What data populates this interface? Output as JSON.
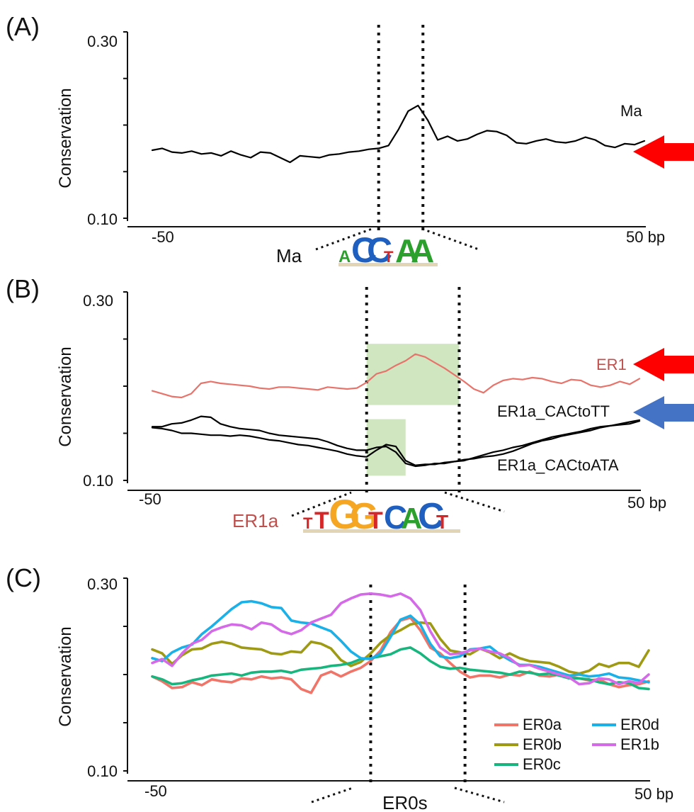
{
  "colors": {
    "axis": "#111111",
    "guide": "#111111",
    "red_arrow": "#ff0000",
    "blue_arrow": "#4472c4",
    "highlight": "#a9d18e",
    "ER1_red": "#e8736b",
    "ER1a_label": "#c0504d"
  },
  "chart_data": [
    {
      "panel": "(A)",
      "type": "line",
      "ylabel": "Conservation",
      "ytick_labels": [
        "0.30",
        "0.10"
      ],
      "ylim": [
        0.1,
        0.3
      ],
      "xlim": [
        -50,
        50
      ],
      "x_tick_labels": [
        "-50",
        "50 bp"
      ],
      "guides_x": [
        -4,
        5
      ],
      "motif": {
        "name": "Ma",
        "logo": "ACCTAA",
        "logo_colors": [
          "#2ca02c",
          "#1f5fbf",
          "#1f5fbf",
          "#d62728",
          "#2ca02c",
          "#2ca02c"
        ]
      },
      "arrows": [
        {
          "color": "red",
          "y": 0.17
        }
      ],
      "series": [
        {
          "name": "Ma",
          "color": "#000000",
          "x": [
            -50,
            -48,
            -46,
            -44,
            -42,
            -40,
            -38,
            -36,
            -34,
            -32,
            -30,
            -28,
            -26,
            -24,
            -22,
            -20,
            -18,
            -16,
            -14,
            -12,
            -10,
            -8,
            -6,
            -4,
            -2,
            0,
            2,
            4,
            6,
            8,
            10,
            12,
            14,
            16,
            18,
            20,
            22,
            24,
            26,
            28,
            30,
            32,
            34,
            36,
            38,
            40,
            42,
            44,
            46,
            48,
            50
          ],
          "y": [
            0.173,
            0.175,
            0.171,
            0.17,
            0.172,
            0.169,
            0.17,
            0.167,
            0.172,
            0.168,
            0.165,
            0.171,
            0.17,
            0.165,
            0.16,
            0.167,
            0.166,
            0.165,
            0.168,
            0.169,
            0.171,
            0.172,
            0.174,
            0.175,
            0.178,
            0.195,
            0.215,
            0.221,
            0.205,
            0.184,
            0.188,
            0.183,
            0.185,
            0.19,
            0.194,
            0.193,
            0.189,
            0.181,
            0.18,
            0.183,
            0.185,
            0.182,
            0.181,
            0.183,
            0.187,
            0.184,
            0.178,
            0.176,
            0.18,
            0.179,
            0.183
          ]
        }
      ]
    },
    {
      "panel": "(B)",
      "type": "line",
      "ylabel": "Conservation",
      "ytick_labels": [
        "0.30",
        "0.10"
      ],
      "ylim": [
        0.1,
        0.3
      ],
      "xlim": [
        -50,
        50
      ],
      "x_tick_labels": [
        "-50",
        "50 bp"
      ],
      "guides_x": [
        -6,
        13
      ],
      "highlights": [
        {
          "x": [
            -6,
            13
          ],
          "y": [
            0.18,
            0.245
          ]
        },
        {
          "x": [
            -6,
            2
          ],
          "y": [
            0.105,
            0.165
          ]
        }
      ],
      "motif": {
        "name": "ER1a",
        "logo": "TTGGTCACT",
        "logo_colors": [
          "#d62728",
          "#d62728",
          "#f5a623",
          "#f5a623",
          "#d62728",
          "#1f5fbf",
          "#2ca02c",
          "#1f5fbf",
          "#d62728"
        ]
      },
      "arrows": [
        {
          "color": "red",
          "y": 0.225
        },
        {
          "color": "blue",
          "y": 0.17
        }
      ],
      "series": [
        {
          "name": "ER1",
          "color": "#e8736b",
          "x": [
            -50,
            -48,
            -46,
            -44,
            -42,
            -40,
            -38,
            -36,
            -34,
            -32,
            -30,
            -28,
            -26,
            -24,
            -22,
            -20,
            -18,
            -16,
            -14,
            -12,
            -10,
            -8,
            -6,
            -4,
            -2,
            0,
            2,
            4,
            6,
            8,
            10,
            12,
            14,
            16,
            18,
            20,
            22,
            24,
            26,
            28,
            30,
            32,
            34,
            36,
            38,
            40,
            42,
            44,
            46,
            48,
            50
          ],
          "y": [
            0.195,
            0.192,
            0.189,
            0.188,
            0.192,
            0.203,
            0.205,
            0.203,
            0.202,
            0.201,
            0.2,
            0.198,
            0.197,
            0.199,
            0.199,
            0.198,
            0.197,
            0.196,
            0.199,
            0.198,
            0.197,
            0.198,
            0.204,
            0.213,
            0.216,
            0.222,
            0.227,
            0.234,
            0.231,
            0.225,
            0.219,
            0.212,
            0.205,
            0.197,
            0.193,
            0.201,
            0.206,
            0.208,
            0.207,
            0.209,
            0.208,
            0.205,
            0.203,
            0.207,
            0.206,
            0.201,
            0.199,
            0.201,
            0.205,
            0.202,
            0.208
          ]
        },
        {
          "name": "ER1a_CACtoTT",
          "color": "#000000",
          "x": [
            -50,
            -48,
            -46,
            -44,
            -42,
            -40,
            -38,
            -36,
            -34,
            -32,
            -30,
            -28,
            -26,
            -24,
            -22,
            -20,
            -18,
            -16,
            -14,
            -12,
            -10,
            -8,
            -6,
            -4,
            -2,
            0,
            2,
            4,
            6,
            8,
            10,
            12,
            14,
            16,
            18,
            20,
            22,
            24,
            26,
            28,
            30,
            32,
            34,
            36,
            38,
            40,
            42,
            44,
            46,
            48,
            50
          ],
          "y": [
            0.157,
            0.157,
            0.16,
            0.161,
            0.164,
            0.168,
            0.167,
            0.16,
            0.157,
            0.155,
            0.154,
            0.153,
            0.15,
            0.148,
            0.147,
            0.146,
            0.145,
            0.144,
            0.141,
            0.137,
            0.134,
            0.132,
            0.132,
            0.135,
            0.136,
            0.13,
            0.118,
            0.115,
            0.116,
            0.118,
            0.118,
            0.12,
            0.121,
            0.124,
            0.127,
            0.13,
            0.132,
            0.135,
            0.137,
            0.14,
            0.143,
            0.146,
            0.148,
            0.15,
            0.152,
            0.155,
            0.157,
            0.158,
            0.159,
            0.16,
            0.163
          ]
        },
        {
          "name": "ER1a_CACtoATA",
          "color": "#000000",
          "x": [
            -50,
            -48,
            -46,
            -44,
            -42,
            -40,
            -38,
            -36,
            -34,
            -32,
            -30,
            -28,
            -26,
            -24,
            -22,
            -20,
            -18,
            -16,
            -14,
            -12,
            -10,
            -8,
            -6,
            -4,
            -2,
            0,
            2,
            4,
            6,
            8,
            10,
            12,
            14,
            16,
            18,
            20,
            22,
            24,
            26,
            28,
            30,
            32,
            34,
            36,
            38,
            40,
            42,
            44,
            46,
            48,
            50
          ],
          "y": [
            0.156,
            0.155,
            0.153,
            0.15,
            0.15,
            0.149,
            0.148,
            0.148,
            0.147,
            0.148,
            0.147,
            0.145,
            0.143,
            0.142,
            0.14,
            0.138,
            0.137,
            0.135,
            0.133,
            0.131,
            0.128,
            0.126,
            0.125,
            0.132,
            0.138,
            0.136,
            0.121,
            0.116,
            0.117,
            0.117,
            0.119,
            0.12,
            0.122,
            0.123,
            0.125,
            0.126,
            0.128,
            0.131,
            0.135,
            0.139,
            0.142,
            0.144,
            0.147,
            0.149,
            0.151,
            0.153,
            0.156,
            0.158,
            0.16,
            0.162,
            0.164
          ]
        }
      ]
    },
    {
      "panel": "(C)",
      "type": "line",
      "ylabel": "Conservation",
      "ytick_labels": [
        "0.30",
        "0.10"
      ],
      "ylim": [
        0.1,
        0.3
      ],
      "xlim": [
        -50,
        50
      ],
      "x_tick_labels": [
        "-50",
        "50 bp"
      ],
      "guides_x": [
        -6,
        13
      ],
      "motif": {
        "name": "ER0s"
      },
      "legend": "bottom-right",
      "series": [
        {
          "name": "ER0a",
          "color": "#f07468",
          "x": [
            -50,
            -48,
            -46,
            -44,
            -42,
            -40,
            -38,
            -36,
            -34,
            -32,
            -30,
            -28,
            -26,
            -24,
            -22,
            -20,
            -18,
            -16,
            -14,
            -12,
            -10,
            -8,
            -6,
            -4,
            -2,
            0,
            2,
            4,
            6,
            8,
            10,
            12,
            14,
            16,
            18,
            20,
            22,
            24,
            26,
            28,
            30,
            32,
            34,
            36,
            38,
            40,
            42,
            44,
            46,
            48,
            50
          ],
          "y": [
            0.198,
            0.193,
            0.186,
            0.187,
            0.192,
            0.189,
            0.195,
            0.193,
            0.192,
            0.196,
            0.195,
            0.198,
            0.196,
            0.197,
            0.195,
            0.185,
            0.181,
            0.199,
            0.203,
            0.198,
            0.203,
            0.207,
            0.214,
            0.225,
            0.244,
            0.256,
            0.259,
            0.246,
            0.228,
            0.222,
            0.212,
            0.203,
            0.197,
            0.199,
            0.199,
            0.197,
            0.2,
            0.199,
            0.203,
            0.199,
            0.198,
            0.2,
            0.198,
            0.196,
            0.194,
            0.195,
            0.19,
            0.187,
            0.189,
            0.19,
            0.193
          ]
        },
        {
          "name": "ER0b",
          "color": "#9e9a14",
          "x": [
            -50,
            -48,
            -46,
            -44,
            -42,
            -40,
            -38,
            -36,
            -34,
            -32,
            -30,
            -28,
            -26,
            -24,
            -22,
            -20,
            -18,
            -16,
            -14,
            -12,
            -10,
            -8,
            -6,
            -4,
            -2,
            0,
            2,
            4,
            6,
            8,
            10,
            12,
            14,
            16,
            18,
            20,
            22,
            24,
            26,
            28,
            30,
            32,
            34,
            36,
            38,
            40,
            42,
            44,
            46,
            48,
            50
          ],
          "y": [
            0.226,
            0.222,
            0.211,
            0.22,
            0.226,
            0.227,
            0.232,
            0.234,
            0.232,
            0.228,
            0.227,
            0.226,
            0.222,
            0.221,
            0.224,
            0.223,
            0.234,
            0.232,
            0.227,
            0.215,
            0.209,
            0.213,
            0.222,
            0.233,
            0.241,
            0.246,
            0.252,
            0.254,
            0.253,
            0.237,
            0.225,
            0.223,
            0.221,
            0.227,
            0.223,
            0.217,
            0.222,
            0.217,
            0.214,
            0.213,
            0.212,
            0.208,
            0.203,
            0.201,
            0.204,
            0.211,
            0.208,
            0.212,
            0.212,
            0.208,
            0.225
          ]
        },
        {
          "name": "ER0c",
          "color": "#18b67e",
          "x": [
            -50,
            -48,
            -46,
            -44,
            -42,
            -40,
            -38,
            -36,
            -34,
            -32,
            -30,
            -28,
            -26,
            -24,
            -22,
            -20,
            -18,
            -16,
            -14,
            -12,
            -10,
            -8,
            -6,
            -4,
            -2,
            0,
            2,
            4,
            6,
            8,
            10,
            12,
            14,
            16,
            18,
            20,
            22,
            24,
            26,
            28,
            30,
            32,
            34,
            36,
            38,
            40,
            42,
            44,
            46,
            48,
            50
          ],
          "y": [
            0.198,
            0.195,
            0.19,
            0.191,
            0.194,
            0.196,
            0.199,
            0.2,
            0.201,
            0.199,
            0.202,
            0.203,
            0.203,
            0.204,
            0.202,
            0.205,
            0.206,
            0.207,
            0.209,
            0.21,
            0.212,
            0.216,
            0.217,
            0.219,
            0.221,
            0.226,
            0.228,
            0.222,
            0.214,
            0.208,
            0.206,
            0.207,
            0.205,
            0.204,
            0.203,
            0.202,
            0.2,
            0.203,
            0.202,
            0.2,
            0.201,
            0.199,
            0.196,
            0.196,
            0.195,
            0.192,
            0.19,
            0.192,
            0.191,
            0.186,
            0.185
          ]
        },
        {
          "name": "ER0d",
          "color": "#1ab0e8",
          "x": [
            -50,
            -48,
            -46,
            -44,
            -42,
            -40,
            -38,
            -36,
            -34,
            -32,
            -30,
            -28,
            -26,
            -24,
            -22,
            -20,
            -18,
            -16,
            -14,
            -12,
            -10,
            -8,
            -6,
            -4,
            -2,
            0,
            2,
            4,
            6,
            8,
            10,
            12,
            14,
            16,
            18,
            20,
            22,
            24,
            26,
            28,
            30,
            32,
            34,
            36,
            38,
            40,
            42,
            44,
            46,
            48,
            50
          ],
          "y": [
            0.217,
            0.214,
            0.223,
            0.228,
            0.231,
            0.242,
            0.25,
            0.259,
            0.268,
            0.275,
            0.276,
            0.274,
            0.27,
            0.269,
            0.256,
            0.254,
            0.253,
            0.249,
            0.245,
            0.235,
            0.224,
            0.217,
            0.216,
            0.222,
            0.239,
            0.257,
            0.261,
            0.252,
            0.232,
            0.219,
            0.217,
            0.219,
            0.226,
            0.227,
            0.229,
            0.221,
            0.215,
            0.21,
            0.21,
            0.208,
            0.205,
            0.202,
            0.199,
            0.2,
            0.198,
            0.199,
            0.201,
            0.197,
            0.196,
            0.194,
            0.192
          ]
        },
        {
          "name": "ER1b",
          "color": "#d46ae8",
          "x": [
            -50,
            -48,
            -46,
            -44,
            -42,
            -40,
            -38,
            -36,
            -34,
            -32,
            -30,
            -28,
            -26,
            -24,
            -22,
            -20,
            -18,
            -16,
            -14,
            -12,
            -10,
            -8,
            -6,
            -4,
            -2,
            0,
            2,
            4,
            6,
            8,
            10,
            12,
            14,
            16,
            18,
            20,
            22,
            24,
            26,
            28,
            30,
            32,
            34,
            36,
            38,
            40,
            42,
            44,
            46,
            48,
            50
          ],
          "y": [
            0.212,
            0.216,
            0.209,
            0.222,
            0.232,
            0.236,
            0.245,
            0.249,
            0.252,
            0.251,
            0.247,
            0.254,
            0.252,
            0.245,
            0.242,
            0.246,
            0.254,
            0.258,
            0.262,
            0.274,
            0.279,
            0.283,
            0.284,
            0.283,
            0.281,
            0.284,
            0.279,
            0.267,
            0.245,
            0.228,
            0.221,
            0.222,
            0.225,
            0.227,
            0.224,
            0.222,
            0.217,
            0.209,
            0.21,
            0.206,
            0.203,
            0.2,
            0.197,
            0.19,
            0.191,
            0.196,
            0.195,
            0.19,
            0.193,
            0.191,
            0.2
          ]
        }
      ]
    }
  ]
}
